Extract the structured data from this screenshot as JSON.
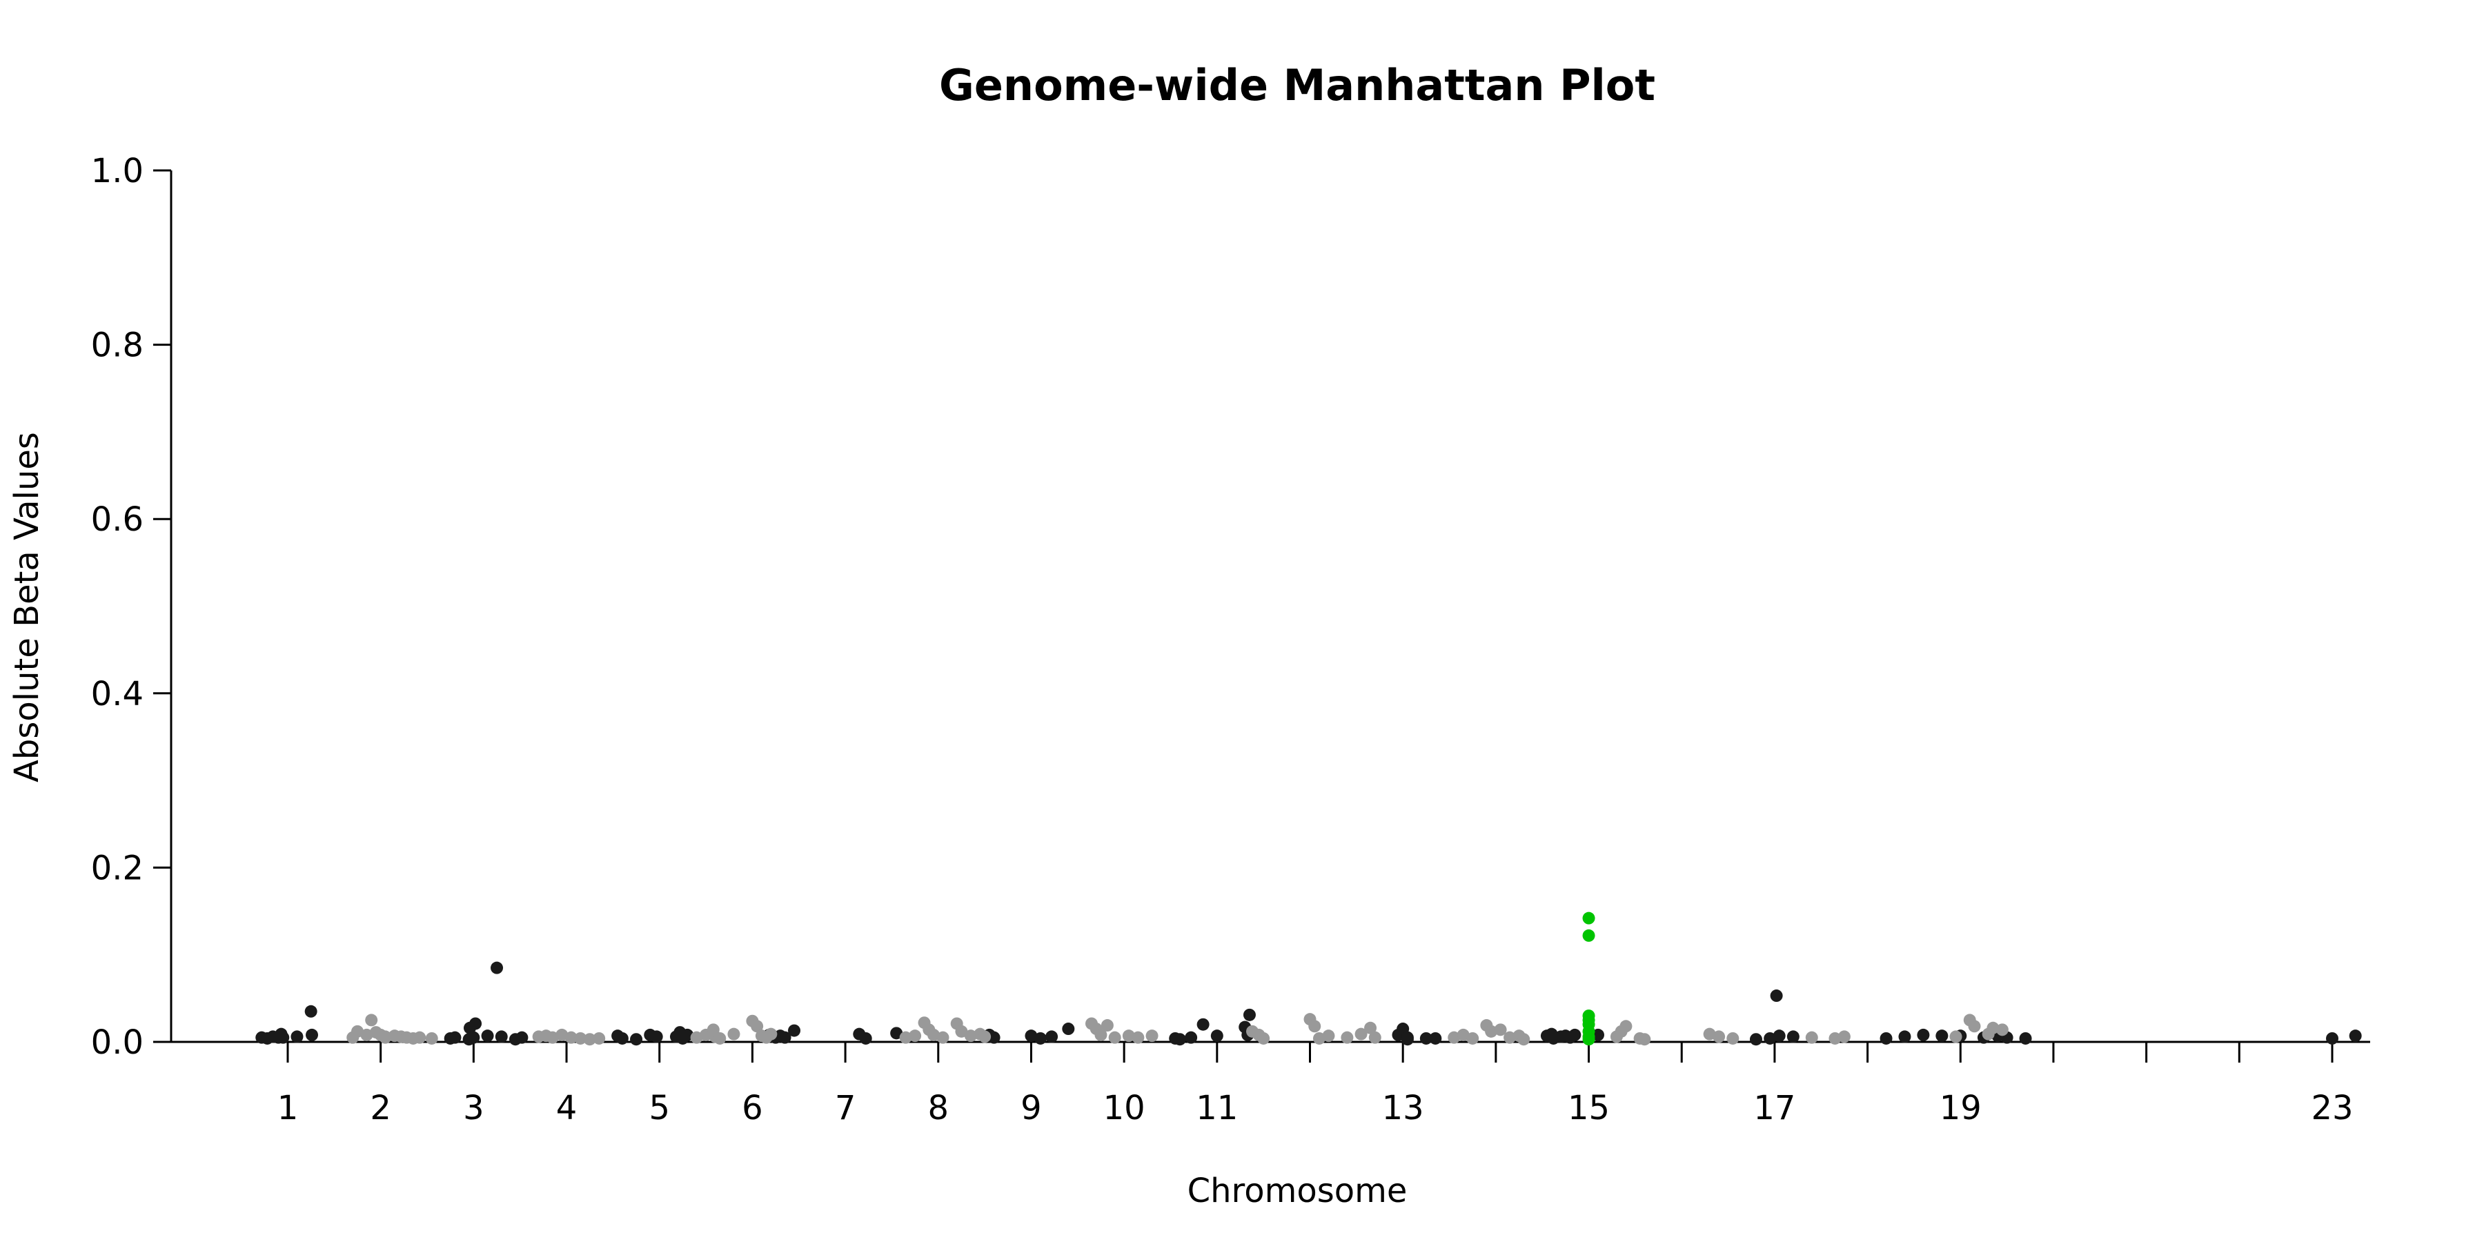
{
  "chart_data": {
    "type": "scatter",
    "title": "Genome-wide Manhattan Plot",
    "xlabel": "Chromosome",
    "ylabel": "Absolute Beta Values",
    "ylim": [
      0,
      1.0
    ],
    "yticks": [
      "0.0",
      "0.2",
      "0.4",
      "0.6",
      "0.8",
      "1.0"
    ],
    "xticks": [
      {
        "label": "1",
        "pos": 1.0
      },
      {
        "label": "2",
        "pos": 2.0
      },
      {
        "label": "3",
        "pos": 3.0
      },
      {
        "label": "4",
        "pos": 4.0
      },
      {
        "label": "5",
        "pos": 5.0
      },
      {
        "label": "6",
        "pos": 6.0
      },
      {
        "label": "7",
        "pos": 7.0
      },
      {
        "label": "8",
        "pos": 8.0
      },
      {
        "label": "9",
        "pos": 9.0
      },
      {
        "label": "10",
        "pos": 10.0
      },
      {
        "label": "11",
        "pos": 11.0
      },
      {
        "label": "",
        "pos": 12.0
      },
      {
        "label": "13",
        "pos": 13.0
      },
      {
        "label": "",
        "pos": 14.0
      },
      {
        "label": "15",
        "pos": 15.0
      },
      {
        "label": "",
        "pos": 16.0
      },
      {
        "label": "17",
        "pos": 17.0
      },
      {
        "label": "",
        "pos": 18.0
      },
      {
        "label": "19",
        "pos": 19.0
      },
      {
        "label": "",
        "pos": 20.0
      },
      {
        "label": "",
        "pos": 21.0
      },
      {
        "label": "",
        "pos": 22.0
      },
      {
        "label": "23",
        "pos": 23.0
      }
    ],
    "grid": false,
    "legend": "none",
    "colors": {
      "odd": "#1a1a1a",
      "even": "#999999",
      "highlight": "#00c400"
    },
    "series": [
      {
        "color_key": "odd",
        "points": [
          [
            0.72,
            0.005
          ],
          [
            0.78,
            0.004
          ],
          [
            0.84,
            0.006
          ],
          [
            0.9,
            0.005
          ],
          [
            0.93,
            0.009
          ],
          [
            0.95,
            0.005
          ],
          [
            1.1,
            0.006
          ],
          [
            1.25,
            0.035
          ],
          [
            1.26,
            0.008
          ],
          [
            2.75,
            0.004
          ],
          [
            2.8,
            0.005
          ],
          [
            2.95,
            0.003
          ],
          [
            2.96,
            0.016
          ],
          [
            3.0,
            0.005
          ],
          [
            3.02,
            0.021
          ],
          [
            3.15,
            0.007
          ],
          [
            3.25,
            0.085
          ],
          [
            3.3,
            0.006
          ],
          [
            3.45,
            0.003
          ],
          [
            3.52,
            0.005
          ],
          [
            4.55,
            0.007
          ],
          [
            4.6,
            0.004
          ],
          [
            4.75,
            0.003
          ],
          [
            4.9,
            0.008
          ],
          [
            4.97,
            0.006
          ],
          [
            5.18,
            0.006
          ],
          [
            5.22,
            0.011
          ],
          [
            5.3,
            0.008
          ],
          [
            5.25,
            0.004
          ],
          [
            6.18,
            0.008
          ],
          [
            6.25,
            0.005
          ],
          [
            6.35,
            0.005
          ],
          [
            6.45,
            0.013
          ],
          [
            6.3,
            0.007
          ],
          [
            7.15,
            0.009
          ],
          [
            7.22,
            0.004
          ],
          [
            7.55,
            0.01
          ],
          [
            8.55,
            0.008
          ],
          [
            8.6,
            0.005
          ],
          [
            9.0,
            0.007
          ],
          [
            9.1,
            0.004
          ],
          [
            9.22,
            0.006
          ],
          [
            9.4,
            0.015
          ],
          [
            10.55,
            0.004
          ],
          [
            10.6,
            0.003
          ],
          [
            10.72,
            0.005
          ],
          [
            10.85,
            0.02
          ],
          [
            11.0,
            0.007
          ],
          [
            11.3,
            0.017
          ],
          [
            11.35,
            0.031
          ],
          [
            11.33,
            0.008
          ],
          [
            12.95,
            0.008
          ],
          [
            13.0,
            0.015
          ],
          [
            13.05,
            0.005
          ],
          [
            13.25,
            0.004
          ],
          [
            13.35,
            0.004
          ],
          [
            13.05,
            0.003
          ],
          [
            14.55,
            0.007
          ],
          [
            14.6,
            0.009
          ],
          [
            14.62,
            0.004
          ],
          [
            14.7,
            0.006
          ],
          [
            14.75,
            0.007
          ],
          [
            14.8,
            0.005
          ],
          [
            14.85,
            0.008
          ],
          [
            15.1,
            0.008
          ],
          [
            16.8,
            0.003
          ],
          [
            16.95,
            0.004
          ],
          [
            17.05,
            0.007
          ],
          [
            17.02,
            0.053
          ],
          [
            17.2,
            0.006
          ],
          [
            18.2,
            0.004
          ],
          [
            18.4,
            0.006
          ],
          [
            18.6,
            0.008
          ],
          [
            18.8,
            0.007
          ],
          [
            19.0,
            0.007
          ],
          [
            19.25,
            0.005
          ],
          [
            19.4,
            0.007
          ],
          [
            19.5,
            0.005
          ],
          [
            19.7,
            0.004
          ],
          [
            23.0,
            0.004
          ],
          [
            23.25,
            0.007
          ]
        ]
      },
      {
        "color_key": "even",
        "points": [
          [
            1.75,
            0.012
          ],
          [
            1.85,
            0.008
          ],
          [
            1.9,
            0.025
          ],
          [
            1.7,
            0.005
          ],
          [
            2.05,
            0.006
          ],
          [
            1.95,
            0.011
          ],
          [
            2.0,
            0.008
          ],
          [
            2.05,
            0.005
          ],
          [
            2.15,
            0.007
          ],
          [
            2.22,
            0.006
          ],
          [
            2.28,
            0.005
          ],
          [
            2.35,
            0.004
          ],
          [
            2.42,
            0.005
          ],
          [
            2.55,
            0.004
          ],
          [
            3.7,
            0.006
          ],
          [
            3.78,
            0.007
          ],
          [
            3.85,
            0.005
          ],
          [
            3.95,
            0.008
          ],
          [
            4.05,
            0.005
          ],
          [
            4.15,
            0.004
          ],
          [
            4.25,
            0.003
          ],
          [
            4.35,
            0.004
          ],
          [
            5.4,
            0.005
          ],
          [
            5.5,
            0.008
          ],
          [
            5.58,
            0.014
          ],
          [
            5.6,
            0.006
          ],
          [
            5.65,
            0.004
          ],
          [
            5.8,
            0.009
          ],
          [
            6.0,
            0.024
          ],
          [
            6.05,
            0.018
          ],
          [
            6.1,
            0.007
          ],
          [
            6.2,
            0.009
          ],
          [
            6.15,
            0.005
          ],
          [
            7.65,
            0.005
          ],
          [
            7.75,
            0.007
          ],
          [
            7.85,
            0.022
          ],
          [
            7.9,
            0.014
          ],
          [
            7.95,
            0.008
          ],
          [
            8.05,
            0.005
          ],
          [
            8.2,
            0.021
          ],
          [
            8.25,
            0.012
          ],
          [
            8.35,
            0.007
          ],
          [
            8.45,
            0.009
          ],
          [
            8.5,
            0.006
          ],
          [
            9.65,
            0.021
          ],
          [
            9.7,
            0.015
          ],
          [
            9.75,
            0.008
          ],
          [
            9.82,
            0.019
          ],
          [
            9.9,
            0.005
          ],
          [
            10.05,
            0.007
          ],
          [
            10.15,
            0.005
          ],
          [
            10.3,
            0.007
          ],
          [
            11.38,
            0.012
          ],
          [
            11.45,
            0.008
          ],
          [
            11.5,
            0.004
          ],
          [
            12.0,
            0.026
          ],
          [
            12.05,
            0.018
          ],
          [
            12.1,
            0.004
          ],
          [
            12.2,
            0.007
          ],
          [
            12.4,
            0.005
          ],
          [
            12.55,
            0.009
          ],
          [
            12.65,
            0.016
          ],
          [
            12.7,
            0.005
          ],
          [
            13.55,
            0.005
          ],
          [
            13.65,
            0.008
          ],
          [
            13.75,
            0.004
          ],
          [
            13.9,
            0.019
          ],
          [
            13.95,
            0.012
          ],
          [
            14.05,
            0.014
          ],
          [
            14.15,
            0.005
          ],
          [
            14.25,
            0.007
          ],
          [
            14.3,
            0.003
          ],
          [
            15.3,
            0.006
          ],
          [
            15.35,
            0.012
          ],
          [
            15.4,
            0.018
          ],
          [
            15.55,
            0.004
          ],
          [
            15.6,
            0.003
          ],
          [
            16.3,
            0.009
          ],
          [
            16.4,
            0.006
          ],
          [
            16.55,
            0.004
          ],
          [
            17.4,
            0.005
          ],
          [
            17.65,
            0.004
          ],
          [
            17.75,
            0.006
          ],
          [
            18.95,
            0.006
          ],
          [
            19.1,
            0.025
          ],
          [
            19.15,
            0.018
          ],
          [
            19.3,
            0.009
          ],
          [
            19.35,
            0.016
          ],
          [
            19.45,
            0.014
          ]
        ]
      },
      {
        "color_key": "highlight",
        "points": [
          [
            15.0,
            0.142
          ],
          [
            15.0,
            0.122
          ],
          [
            15.0,
            0.03
          ],
          [
            15.0,
            0.025
          ],
          [
            15.0,
            0.02
          ],
          [
            15.0,
            0.012
          ],
          [
            15.0,
            0.006
          ],
          [
            15.0,
            0.003
          ]
        ]
      }
    ]
  }
}
